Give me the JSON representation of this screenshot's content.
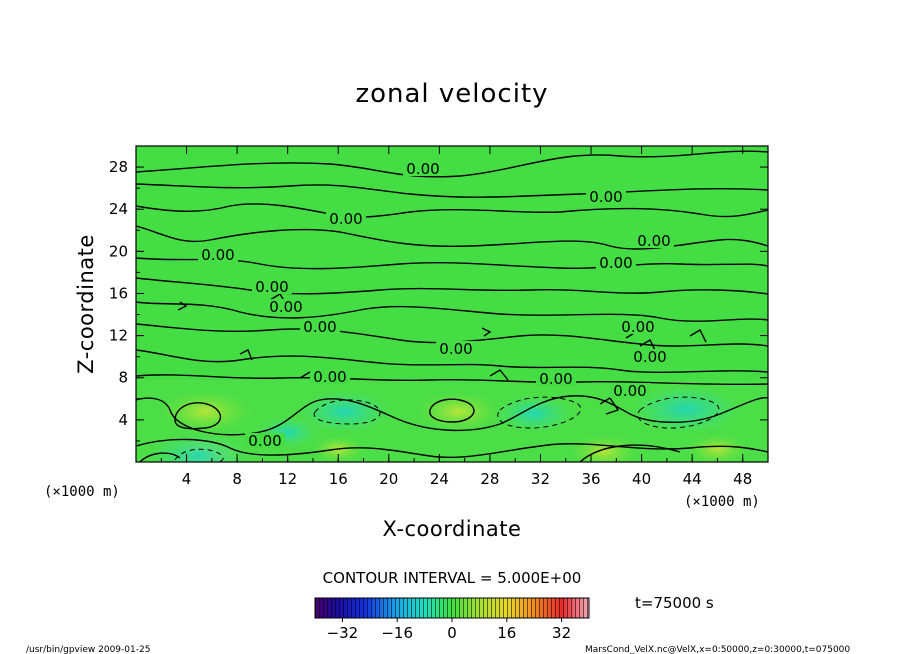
{
  "chart_data": {
    "type": "heatmap",
    "title": "zonal velocity",
    "xlabel": "X-coordinate",
    "ylabel": "Z-coordinate",
    "x_unit_label": "(×1000 m)",
    "y_unit_label": "(×1000 m)",
    "xlim": [
      0,
      50
    ],
    "ylim": [
      0,
      30
    ],
    "x_ticks": [
      4,
      8,
      12,
      16,
      20,
      24,
      28,
      32,
      36,
      40,
      44,
      48
    ],
    "y_ticks": [
      4,
      8,
      12,
      16,
      20,
      24,
      28
    ],
    "contour_interval_label": "CONTOUR INTERVAL = 5.000E+00",
    "contour_labels": [
      "0.00"
    ],
    "colorbar": {
      "range": [
        -40,
        40
      ],
      "ticks": [
        -32,
        -16,
        0,
        16,
        32
      ]
    },
    "time_label": "t=75000 s",
    "features": [
      {
        "kind": "positive",
        "x": 5.5,
        "z": 4.8,
        "value": 8
      },
      {
        "kind": "positive",
        "x": 25.5,
        "z": 4.8,
        "value": 7
      },
      {
        "kind": "positive",
        "x": 5.5,
        "z": 0.8,
        "value": 6
      },
      {
        "kind": "positive",
        "x": 37.0,
        "z": 1.0,
        "value": 5
      },
      {
        "kind": "positive",
        "x": 46.0,
        "z": 1.2,
        "value": 4
      },
      {
        "kind": "positive",
        "x": 16.0,
        "z": 1.2,
        "value": 3
      },
      {
        "kind": "negative",
        "x": 16.5,
        "z": 4.8,
        "value": -8
      },
      {
        "kind": "negative",
        "x": 31.5,
        "z": 4.6,
        "value": -6
      },
      {
        "kind": "negative",
        "x": 43.5,
        "z": 5.0,
        "value": -10
      },
      {
        "kind": "negative",
        "x": 5.0,
        "z": 0.6,
        "value": -9
      },
      {
        "kind": "negative",
        "x": 12.0,
        "z": 2.8,
        "value": -4
      }
    ]
  },
  "footer": {
    "left": "/usr/bin/gpview  2009-01-25",
    "right": "MarsCond_VelX.nc@VelX,x=0:50000,z=0:30000,t=075000"
  }
}
